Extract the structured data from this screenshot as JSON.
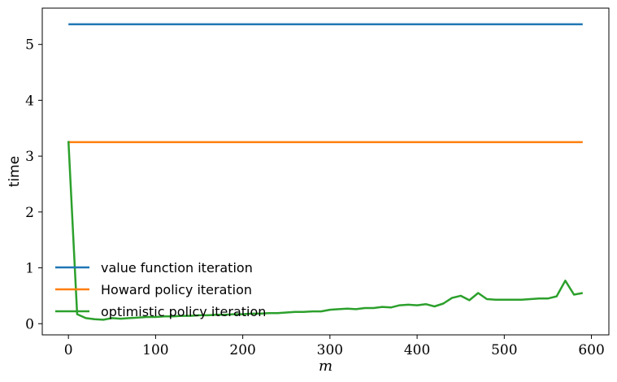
{
  "chart_data": {
    "type": "line",
    "xlabel": "m",
    "ylabel": "time",
    "xlim": [
      -30,
      620
    ],
    "ylim": [
      -0.2,
      5.65
    ],
    "xticks": [
      0,
      100,
      200,
      300,
      400,
      500,
      600
    ],
    "yticks": [
      0,
      1,
      2,
      3,
      4,
      5
    ],
    "grid": false,
    "legend_position": "lower-left",
    "series": [
      {
        "name": "value function iteration",
        "color": "#1f77b4",
        "x": [
          0,
          590
        ],
        "y": [
          5.36,
          5.36
        ]
      },
      {
        "name": "Howard policy iteration",
        "color": "#ff7f0e",
        "x": [
          0,
          590
        ],
        "y": [
          3.25,
          3.25
        ]
      },
      {
        "name": "optimistic policy iteration",
        "color": "#2ca02c",
        "x": [
          0,
          10,
          20,
          30,
          40,
          50,
          60,
          70,
          80,
          90,
          100,
          110,
          120,
          130,
          140,
          150,
          160,
          170,
          180,
          190,
          200,
          210,
          220,
          230,
          240,
          250,
          260,
          270,
          280,
          290,
          300,
          310,
          320,
          330,
          340,
          350,
          360,
          370,
          380,
          390,
          400,
          410,
          420,
          430,
          440,
          450,
          460,
          470,
          480,
          490,
          500,
          510,
          520,
          530,
          540,
          550,
          560,
          570,
          580,
          590
        ],
        "y": [
          3.27,
          0.17,
          0.1,
          0.08,
          0.07,
          0.1,
          0.09,
          0.1,
          0.11,
          0.12,
          0.12,
          0.13,
          0.13,
          0.14,
          0.14,
          0.15,
          0.15,
          0.16,
          0.16,
          0.17,
          0.17,
          0.18,
          0.18,
          0.19,
          0.19,
          0.2,
          0.21,
          0.21,
          0.22,
          0.22,
          0.25,
          0.26,
          0.27,
          0.26,
          0.28,
          0.28,
          0.3,
          0.29,
          0.33,
          0.34,
          0.33,
          0.35,
          0.31,
          0.36,
          0.46,
          0.5,
          0.42,
          0.55,
          0.44,
          0.43,
          0.43,
          0.43,
          0.43,
          0.44,
          0.45,
          0.45,
          0.49,
          0.77,
          0.52,
          0.55
        ]
      }
    ]
  }
}
